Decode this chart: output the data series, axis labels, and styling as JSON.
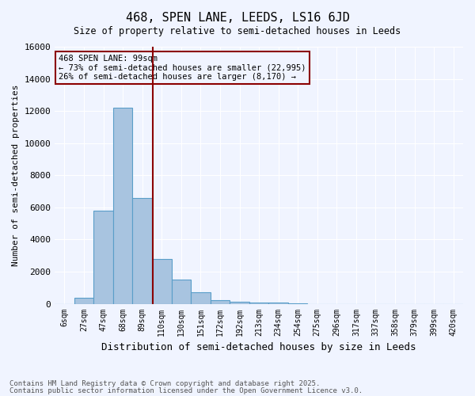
{
  "title": "468, SPEN LANE, LEEDS, LS16 6JD",
  "subtitle": "Size of property relative to semi-detached houses in Leeds",
  "xlabel": "Distribution of semi-detached houses by size in Leeds",
  "ylabel": "Number of semi-detached properties",
  "footer_line1": "Contains HM Land Registry data © Crown copyright and database right 2025.",
  "footer_line2": "Contains public sector information licensed under the Open Government Licence v3.0.",
  "bin_labels": [
    "6sqm",
    "27sqm",
    "47sqm",
    "68sqm",
    "89sqm",
    "110sqm",
    "130sqm",
    "151sqm",
    "172sqm",
    "192sqm",
    "213sqm",
    "234sqm",
    "254sqm",
    "275sqm",
    "296sqm",
    "317sqm",
    "337sqm",
    "358sqm",
    "379sqm",
    "399sqm",
    "420sqm"
  ],
  "bar_values": [
    0,
    350,
    5800,
    12200,
    6600,
    2800,
    1500,
    700,
    200,
    150,
    100,
    60,
    30,
    0,
    0,
    0,
    0,
    0,
    0,
    0,
    0
  ],
  "bar_color": "#a8c4e0",
  "bar_edge_color": "#5a9ec9",
  "vline_x": 4.55,
  "vline_color": "#8b0000",
  "annotation_text": "468 SPEN LANE: 99sqm\n← 73% of semi-detached houses are smaller (22,995)\n26% of semi-detached houses are larger (8,170) →",
  "annotation_box_color": "#8b0000",
  "ylim": [
    0,
    16000
  ],
  "yticks": [
    0,
    2000,
    4000,
    6000,
    8000,
    10000,
    12000,
    14000,
    16000
  ],
  "background_color": "#f0f4ff",
  "grid_color": "#ffffff"
}
